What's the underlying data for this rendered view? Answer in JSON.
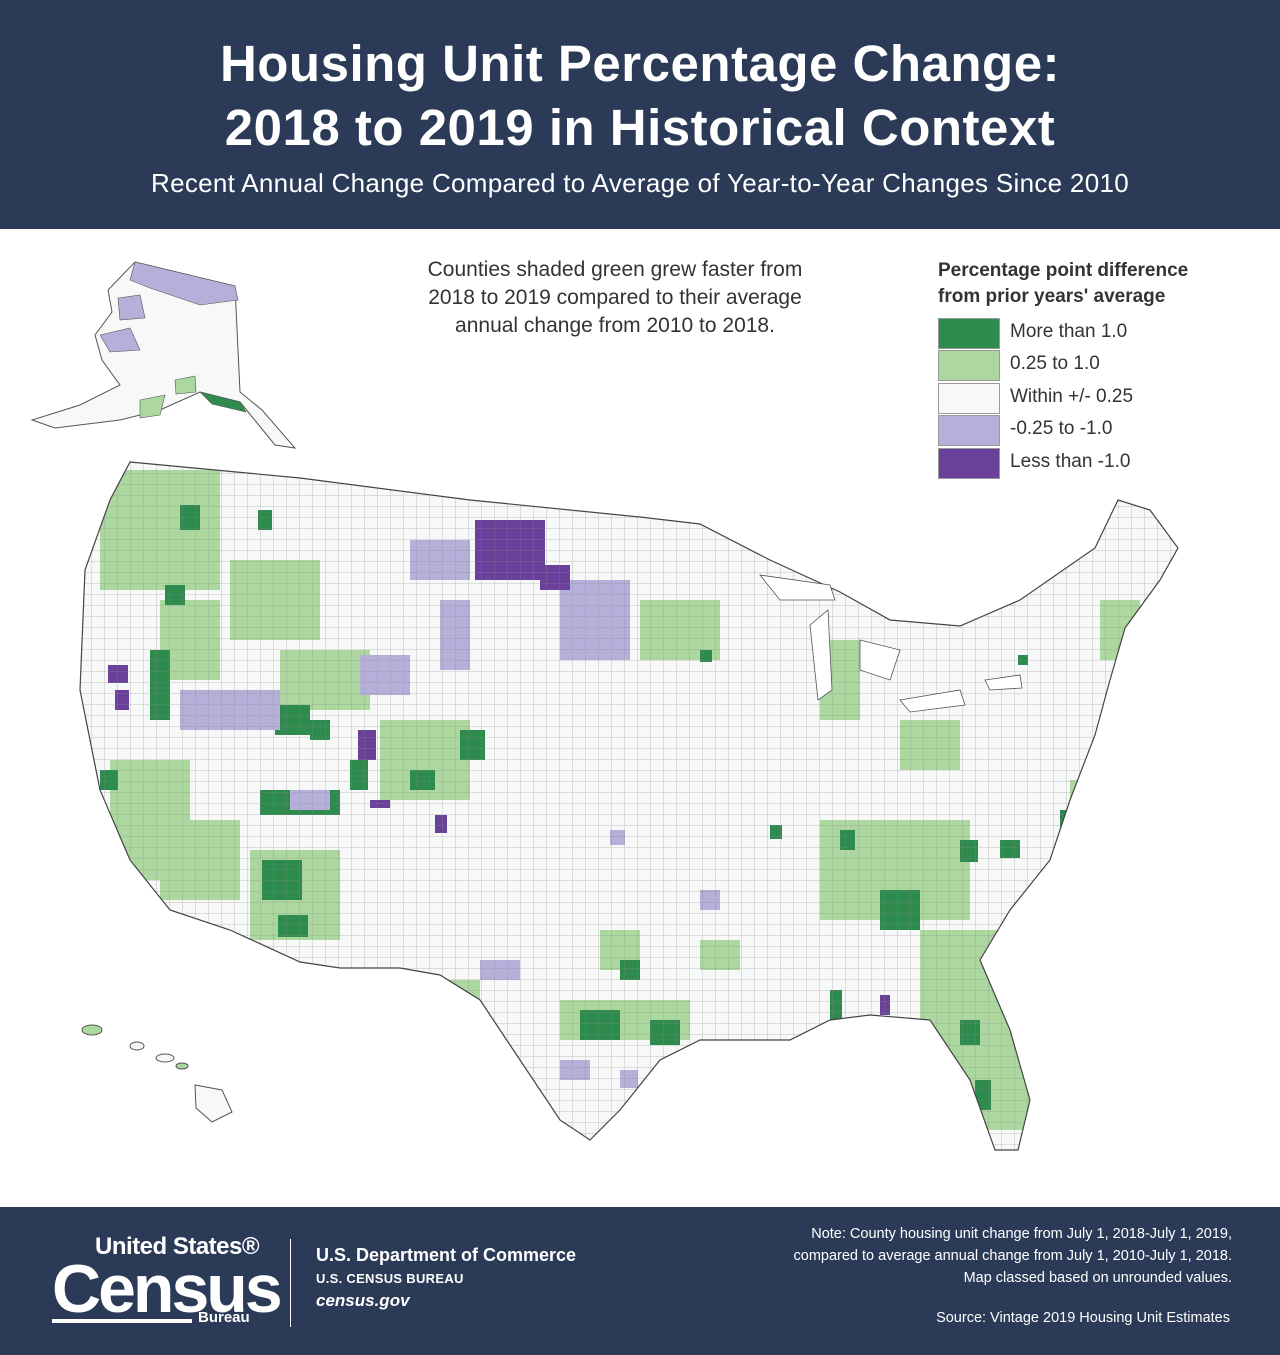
{
  "header": {
    "title_line1": "Housing Unit Percentage Change:",
    "title_line2": "2018 to 2019 in Historical Context",
    "subtitle": "Recent Annual Change Compared to Average of Year-to-Year Changes Since 2010"
  },
  "intro": {
    "line1": "Counties shaded green grew faster from",
    "line2": "2018 to 2019 compared to their average",
    "line3": "annual change from 2010 to 2018."
  },
  "legend": {
    "title_line1": "Percentage point difference",
    "title_line2": "from prior years' average",
    "items": [
      {
        "label": "More than 1.0",
        "color": "#2e8b4e"
      },
      {
        "label": "0.25 to 1.0",
        "color": "#acd8a0"
      },
      {
        "label": "Within +/- 0.25",
        "color": "#f7f9f8"
      },
      {
        "label": "-0.25 to -1.0",
        "color": "#b4b0d9"
      },
      {
        "label": "Less than -1.0",
        "color": "#6a419a"
      }
    ]
  },
  "colors": {
    "header_bg": "#2b3a57",
    "county_border": "#555555"
  },
  "footer": {
    "logo_line1": "United States®",
    "logo_line2": "Census",
    "logo_line3": "Bureau",
    "dept": "U.S. Department of Commerce",
    "bureau": "U.S. CENSUS BUREAU",
    "website": "census.gov",
    "note_line1": "Note: County housing unit change from July 1, 2018-July 1, 2019,",
    "note_line2": "compared to average annual change from July 1, 2010-July 1, 2018.",
    "note_line3": "Map classed based on unrounded values.",
    "source": "Source: Vintage 2019 Housing Unit Estimates"
  }
}
